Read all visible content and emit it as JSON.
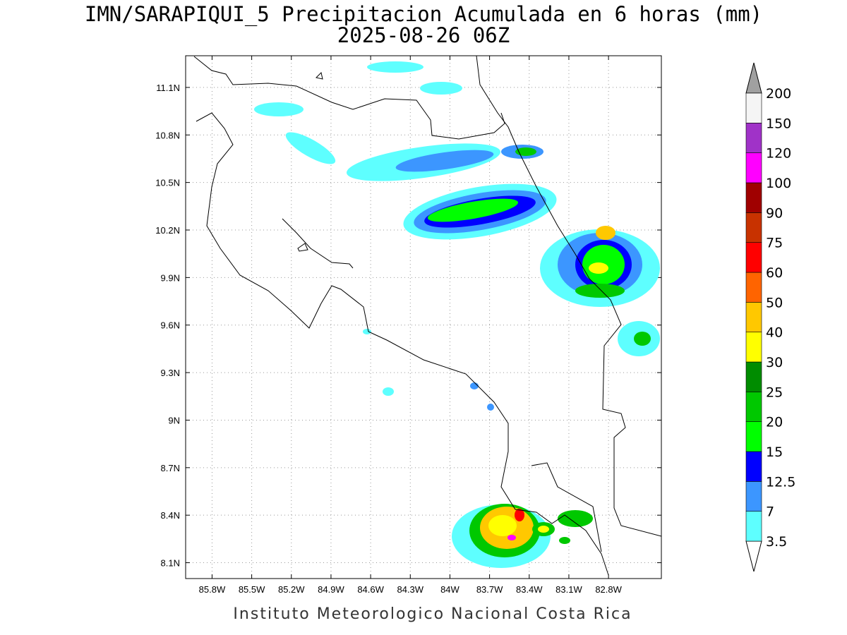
{
  "title": "IMN/SARAPIQUI_5 Precipitacion Acumulada en 6 horas (mm)",
  "subtitle": "2025-08-26 06Z",
  "map": {
    "xlim": [
      -86.0,
      -82.4
    ],
    "ylim": [
      8.0,
      11.3
    ],
    "xticks": [
      {
        "value": -85.8,
        "label": "85.8W"
      },
      {
        "value": -85.5,
        "label": "85.5W"
      },
      {
        "value": -85.2,
        "label": "85.2W"
      },
      {
        "value": -84.9,
        "label": "84.9W"
      },
      {
        "value": -84.6,
        "label": "84.6W"
      },
      {
        "value": -84.3,
        "label": "84.3W"
      },
      {
        "value": -84.0,
        "label": "84W"
      },
      {
        "value": -83.7,
        "label": "83.7W"
      },
      {
        "value": -83.4,
        "label": "83.4W"
      },
      {
        "value": -83.1,
        "label": "83.1W"
      },
      {
        "value": -82.8,
        "label": "82.8W"
      }
    ],
    "yticks": [
      {
        "value": 8.1,
        "label": "8.1N"
      },
      {
        "value": 8.4,
        "label": "8.4N"
      },
      {
        "value": 8.7,
        "label": "8.7N"
      },
      {
        "value": 9.0,
        "label": "9N"
      },
      {
        "value": 9.3,
        "label": "9.3N"
      },
      {
        "value": 9.6,
        "label": "9.6N"
      },
      {
        "value": 9.9,
        "label": "9.9N"
      },
      {
        "value": 10.2,
        "label": "10.2N"
      },
      {
        "value": 10.5,
        "label": "10.5N"
      },
      {
        "value": 10.8,
        "label": "10.8N"
      },
      {
        "value": 11.1,
        "label": "11.1N"
      }
    ],
    "grid": true
  },
  "colorbar": {
    "levels": [
      3.5,
      7,
      12.5,
      15,
      20,
      25,
      30,
      40,
      50,
      60,
      75,
      90,
      100,
      120,
      150,
      200
    ],
    "colors": [
      "#5effff",
      "#3c96ff",
      "#0000ff",
      "#00ff00",
      "#00c800",
      "#008c00",
      "#ffff00",
      "#ffc800",
      "#ff6400",
      "#ff0000",
      "#c83200",
      "#a00000",
      "#ff00ff",
      "#a032c8",
      "#f5f5f5"
    ],
    "under_color": "#ffffff",
    "over_color": "#a0a0a0"
  },
  "footer": "Instituto Meteorologico Nacional Costa Rica"
}
